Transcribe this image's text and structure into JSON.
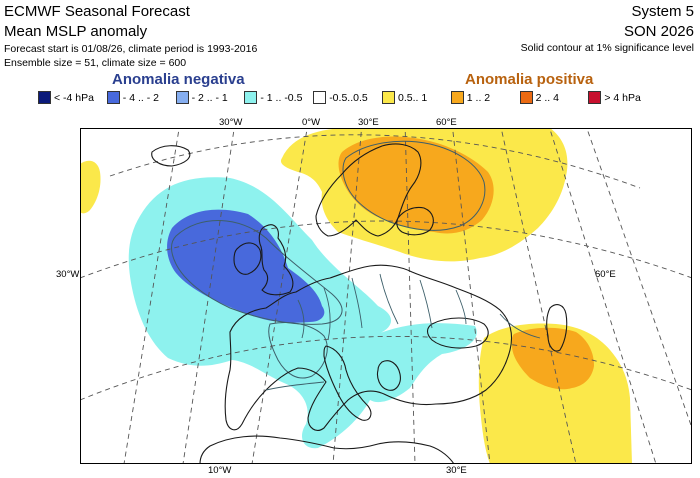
{
  "header": {
    "title": "ECMWF Seasonal Forecast",
    "subtitle": "Mean MSLP anomaly",
    "forecast_info": "Forecast start is 01/08/26, climate period is 1993-2016",
    "ensemble_info": "Ensemble size = 51, climate size = 600",
    "system": "System 5",
    "season": "SON 2026",
    "significance_note": "Solid contour at 1% significance level"
  },
  "legend": {
    "negative_heading": "Anomalia negativa",
    "positive_heading": "Anomalia positiva",
    "items": [
      {
        "label": "< -4 hPa",
        "color": "#0b1a7a"
      },
      {
        "label": "- 4 .. - 2",
        "color": "#4869dc"
      },
      {
        "label": "- 2 .. - 1",
        "color": "#86aef0"
      },
      {
        "label": "- 1 .. -0.5",
        "color": "#8ef2ee"
      },
      {
        "label": "-0.5..0.5",
        "color": "#ffffff"
      },
      {
        "label": "0.5.. 1",
        "color": "#fbe84a"
      },
      {
        "label": "1 .. 2",
        "color": "#f7a81d"
      },
      {
        "label": "2 .. 4",
        "color": "#ea6a13"
      },
      {
        "label": "> 4 hPa",
        "color": "#c8102e"
      }
    ]
  },
  "map": {
    "top_labels": [
      "30°W",
      "0°W",
      "30°E",
      "60°E"
    ],
    "side_left_label": "30°W",
    "side_right_label": "60°E",
    "bottom_labels": [
      "10°W",
      "30°E"
    ],
    "colors": {
      "frame": "#000000",
      "graticule": "#555555",
      "coast": "#1a1a1a",
      "border": "#3d5f6a"
    }
  }
}
